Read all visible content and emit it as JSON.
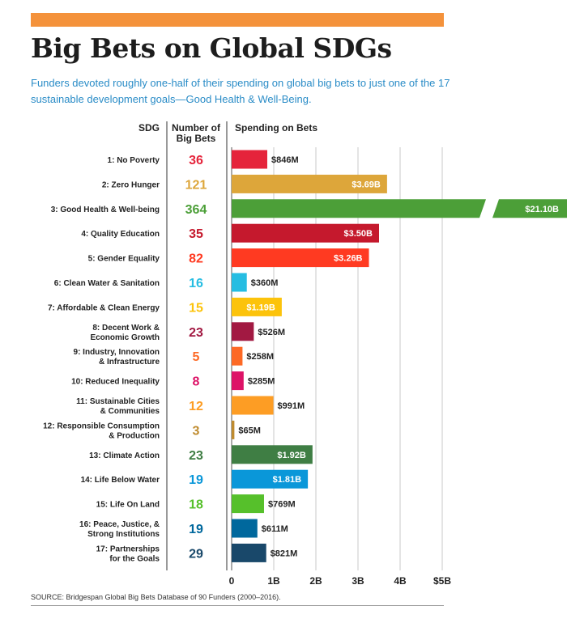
{
  "title": "Big Bets on Global SDGs",
  "subtitle": "Funders devoted roughly one-half of their spending on global big bets to just one of the 17 sustainable development goals—Good Health & Well-Being.",
  "source": "SOURCE: Bridgespan Global Big Bets Database of 90 Funders (2000–2016).",
  "colors": {
    "accent_bar": "#f4923b",
    "subtitle": "#2a8cc7"
  },
  "chart_data": {
    "type": "bar",
    "orientation": "horizontal",
    "column_headers": {
      "sdg": "SDG",
      "count": [
        "Number of",
        "Big Bets"
      ],
      "spending": "Spending on Bets"
    },
    "xlim": [
      0,
      5
    ],
    "x_unit": "billions USD",
    "xticks": [
      {
        "value": 0,
        "label": "0"
      },
      {
        "value": 1,
        "label": "1B"
      },
      {
        "value": 2,
        "label": "2B"
      },
      {
        "value": 3,
        "label": "3B"
      },
      {
        "value": 4,
        "label": "4B"
      },
      {
        "value": 5,
        "label": "$5B"
      }
    ],
    "grid": true,
    "broken_bar_note": "Good Health & Well-being bar exceeds axis and is shown with a break",
    "rows": [
      {
        "label": [
          "1: No Poverty"
        ],
        "bets": 36,
        "value": 0.846,
        "value_label": "$846M",
        "color": "#e5243b",
        "label_inside": false
      },
      {
        "label": [
          "2: Zero Hunger"
        ],
        "bets": 121,
        "value": 3.69,
        "value_label": "$3.69B",
        "color": "#dda63a",
        "label_inside": true
      },
      {
        "label": [
          "3: Good Health & Well-being"
        ],
        "bets": 364,
        "value": 21.1,
        "value_label": "$21.10B",
        "color": "#4c9f38",
        "label_inside": true,
        "broken": true
      },
      {
        "label": [
          "4: Quality Education"
        ],
        "bets": 35,
        "value": 3.5,
        "value_label": "$3.50B",
        "color": "#c5192d",
        "label_inside": true
      },
      {
        "label": [
          "5: Gender Equality"
        ],
        "bets": 82,
        "value": 3.26,
        "value_label": "$3.26B",
        "color": "#ff3a21",
        "label_inside": true
      },
      {
        "label": [
          "6: Clean Water & Sanitation"
        ],
        "bets": 16,
        "value": 0.36,
        "value_label": "$360M",
        "color": "#26bde2",
        "label_inside": false
      },
      {
        "label": [
          "7: Affordable & Clean Energy"
        ],
        "bets": 15,
        "value": 1.19,
        "value_label": "$1.19B",
        "color": "#fcc30b",
        "label_inside": true
      },
      {
        "label": [
          "8: Decent Work &",
          "Economic Growth"
        ],
        "bets": 23,
        "value": 0.526,
        "value_label": "$526M",
        "color": "#a21942",
        "label_inside": false
      },
      {
        "label": [
          "9: Industry, Innovation",
          "& Infrastructure"
        ],
        "bets": 5,
        "value": 0.258,
        "value_label": "$258M",
        "color": "#fd6925",
        "label_inside": false
      },
      {
        "label": [
          "10: Reduced Inequality"
        ],
        "bets": 8,
        "value": 0.285,
        "value_label": "$285M",
        "color": "#dd1367",
        "label_inside": false
      },
      {
        "label": [
          "11: Sustainable Cities",
          "& Communities"
        ],
        "bets": 12,
        "value": 0.991,
        "value_label": "$991M",
        "color": "#fd9d24",
        "label_inside": false
      },
      {
        "label": [
          "12: Responsible Consumption",
          "& Production"
        ],
        "bets": 3,
        "value": 0.065,
        "value_label": "$65M",
        "color": "#bf8b2e",
        "label_inside": false
      },
      {
        "label": [
          "13: Climate Action"
        ],
        "bets": 23,
        "value": 1.92,
        "value_label": "$1.92B",
        "color": "#3f7e44",
        "label_inside": true
      },
      {
        "label": [
          "14: Life Below Water"
        ],
        "bets": 19,
        "value": 1.81,
        "value_label": "$1.81B",
        "color": "#0a97d9",
        "label_inside": true
      },
      {
        "label": [
          "15: Life On Land"
        ],
        "bets": 18,
        "value": 0.769,
        "value_label": "$769M",
        "color": "#56c02b",
        "label_inside": false
      },
      {
        "label": [
          "16: Peace, Justice, &",
          "Strong Institutions"
        ],
        "bets": 19,
        "value": 0.611,
        "value_label": "$611M",
        "color": "#00689d",
        "label_inside": false
      },
      {
        "label": [
          "17: Partnerships",
          "for the Goals"
        ],
        "bets": 29,
        "value": 0.821,
        "value_label": "$821M",
        "color": "#19486a",
        "label_inside": false
      }
    ]
  }
}
